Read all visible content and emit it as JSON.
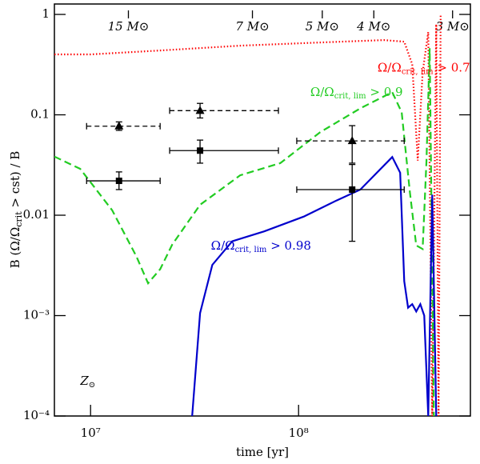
{
  "chart_data": {
    "type": "line",
    "xlabel": "time [yr]",
    "ylabel": [
      "B (Ω/Ω",
      "crit",
      " > cst) / B"
    ],
    "xscale": "log",
    "yscale": "log",
    "xlim": [
      6700000,
      670000000
    ],
    "ylim": [
      0.0001,
      1.27
    ],
    "xticks": [
      {
        "value": 10000000,
        "label": "10⁷"
      },
      {
        "value": 100000000,
        "label": "10⁸"
      }
    ],
    "yticks": [
      {
        "value": 0.0001,
        "label": "10⁻⁴"
      },
      {
        "value": 0.001,
        "label": "10⁻³"
      },
      0.01,
      0.1,
      1
    ],
    "top_ticks": [
      {
        "value": 15200000,
        "label": "15 M⊙"
      },
      {
        "value": 60000000,
        "label": "7 M⊙"
      },
      {
        "value": 130000000,
        "label": "5 M⊙"
      },
      {
        "value": 230000000,
        "label": "4 M⊙"
      },
      {
        "value": 550000000,
        "label": "3 M⊙"
      }
    ],
    "series": [
      {
        "name": "Ω/Ω_crit, lim > 0.7",
        "color": "#ff0000",
        "dash": "dotted",
        "x": [
          6700000,
          10000000,
          21600000,
          52400000,
          127000000,
          258000000,
          322000000,
          352000000,
          374000000,
          395000000,
          420000000,
          439000000,
          459000000,
          471000000,
          482000000
        ],
        "values": [
          0.4,
          0.4,
          0.437,
          0.488,
          0.525,
          0.555,
          0.535,
          0.319,
          0.035,
          0.265,
          0.667,
          0.0001,
          0.8,
          0.0001,
          1.0
        ]
      },
      {
        "name": "Ω/Ω_crit, lim > 0.9",
        "color": "#22cc22",
        "dash": "dashed",
        "x": [
          6700000,
          8910000,
          12700000,
          16600000,
          18900000,
          21600000,
          24700000,
          33600000,
          52400000,
          81700000,
          127000000,
          198000000,
          282000000,
          313000000,
          343000000,
          368000000,
          395000000,
          412000000,
          427000000,
          447000000
        ],
        "values": [
          0.0384,
          0.029,
          0.0112,
          0.0039,
          0.0021,
          0.0029,
          0.0051,
          0.0127,
          0.025,
          0.033,
          0.067,
          0.116,
          0.168,
          0.106,
          0.0168,
          0.005,
          0.0046,
          0.035,
          0.46,
          0.0001
        ]
      },
      {
        "name": "Ω/Ω_crit, lim > 0.98",
        "color": "#0000cc",
        "dash": "solid",
        "x": [
          30800000,
          33600000,
          38500000,
          48000000,
          68400000,
          106000000,
          152000000,
          198000000,
          282000000,
          308000000,
          322000000,
          336000000,
          352000000,
          368000000,
          385000000,
          402000000,
          420000000,
          439000000,
          459000000
        ],
        "values": [
          0.0001,
          0.00106,
          0.0032,
          0.0055,
          0.0069,
          0.0097,
          0.014,
          0.018,
          0.038,
          0.0265,
          0.0022,
          0.0012,
          0.0013,
          0.0011,
          0.0013,
          0.001,
          0.0001,
          0.016,
          0.0001
        ]
      }
    ],
    "points": [
      {
        "marker": "triangle",
        "color": "#000000",
        "x": [
          13700000,
          33600000,
          181000000
        ],
        "values": [
          0.077,
          0.11,
          0.055
        ],
        "x_low": [
          9570000,
          24000000,
          98000000
        ],
        "x_high": [
          21600000,
          80000000,
          322000000
        ],
        "y_low": [
          0.07,
          0.093,
          0.033
        ],
        "y_high": [
          0.085,
          0.13,
          0.078
        ]
      },
      {
        "marker": "square",
        "color": "#000000",
        "x": [
          13700000,
          33600000,
          181000000
        ],
        "values": [
          0.022,
          0.044,
          0.018
        ],
        "x_low": [
          9570000,
          24000000,
          98000000
        ],
        "x_high": [
          21600000,
          80000000,
          322000000
        ],
        "y_low": [
          0.018,
          0.033,
          0.0055
        ],
        "y_high": [
          0.027,
          0.056,
          0.032
        ]
      }
    ],
    "annotations": [
      {
        "parts": [
          "Ω/Ω",
          "crit, lim",
          " > 0.7"
        ],
        "color": "#ff0000",
        "x": 400000000,
        "y": 0.29
      },
      {
        "parts": [
          "Ω/Ω",
          "crit, lim",
          " > 0.9"
        ],
        "color": "#22cc22",
        "x": 190000000,
        "y": 0.165
      },
      {
        "parts": [
          "Ω/Ω",
          "crit, lim",
          " > 0.98"
        ],
        "color": "#0000cc",
        "x": 66000000,
        "y": 0.0049
      },
      {
        "parts": [
          "Z",
          "⊙",
          ""
        ],
        "color": "#000000",
        "x": 9700000,
        "y": 0.00022
      }
    ]
  }
}
